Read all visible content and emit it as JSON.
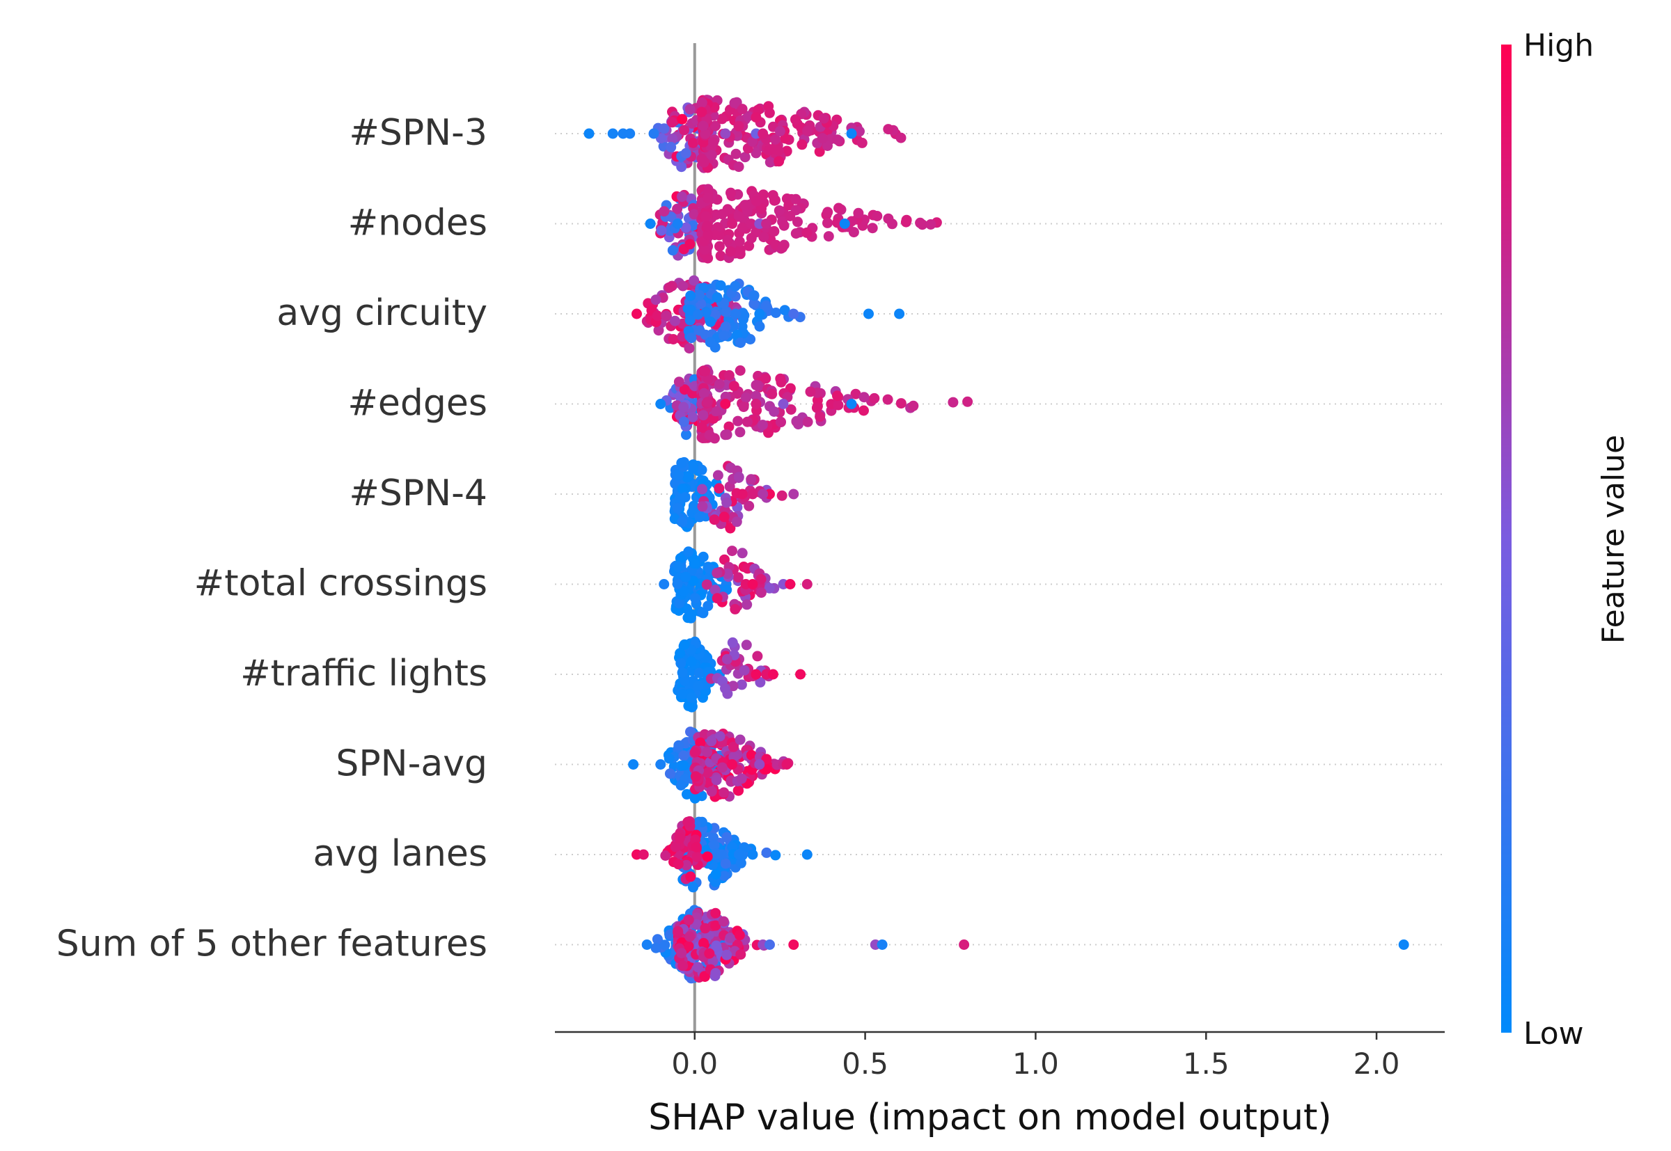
{
  "chart_data": {
    "type": "scatter",
    "subtype": "shap-beeswarm",
    "title": "",
    "xlabel": "SHAP value (impact on model output)",
    "ylabel": "",
    "xlim": [
      -0.41,
      2.2
    ],
    "xticks": [
      0.0,
      0.5,
      1.0,
      1.5,
      2.0
    ],
    "xtick_labels": [
      "0.0",
      "0.5",
      "1.0",
      "1.5",
      "2.0"
    ],
    "grid": false,
    "zero_line": 0.0,
    "features": [
      {
        "name": "#SPN-3",
        "core": [
          [
            -0.15,
            -0.03,
            0.1,
            0.24,
            0.2,
            1.0
          ],
          [
            0.02,
            0.07,
            0.55,
            0.85,
            0.75,
            0.9
          ]
        ],
        "outliers": [
          [
            -0.31,
            0.05
          ],
          [
            -0.24,
            0.08
          ],
          [
            -0.21,
            0.1
          ],
          [
            -0.19,
            0.1
          ],
          [
            -0.12,
            0.15
          ],
          [
            0.09,
            0.6
          ],
          [
            0.18,
            0.45
          ],
          [
            0.2,
            0.85
          ],
          [
            0.46,
            0.05
          ]
        ]
      },
      {
        "name": "#nodes",
        "core": [
          [
            -0.12,
            -0.04,
            0.08,
            0.22,
            0.15,
            1.0
          ],
          [
            0.02,
            0.07,
            0.6,
            0.95,
            0.8,
            0.85
          ]
        ],
        "outliers": [
          [
            -0.13,
            0.05
          ],
          [
            -0.05,
            0.1
          ],
          [
            0.11,
            0.85
          ],
          [
            0.19,
            0.55
          ],
          [
            0.21,
            0.8
          ],
          [
            0.44,
            0.05
          ]
        ]
      },
      {
        "name": "avg circuity",
        "core": [
          [
            -0.14,
            -0.02,
            0.16,
            0.36,
            0.65,
            0.95
          ],
          [
            -0.02,
            0.08,
            0.22,
            0.42,
            0.05,
            0.25
          ]
        ],
        "outliers": [
          [
            -0.17,
            0.95
          ],
          [
            0.12,
            0.15
          ],
          [
            0.19,
            0.05
          ],
          [
            0.29,
            0.3
          ],
          [
            0.51,
            0.05
          ],
          [
            0.6,
            0.05
          ]
        ]
      },
      {
        "name": "#edges",
        "core": [
          [
            -0.1,
            -0.02,
            0.06,
            0.2,
            0.1,
            1.0
          ],
          [
            0.02,
            0.06,
            0.55,
            0.85,
            0.7,
            0.9
          ]
        ],
        "outliers": [
          [
            -0.1,
            0.05
          ],
          [
            0.09,
            0.95
          ],
          [
            0.18,
            0.85
          ],
          [
            0.26,
            0.55
          ],
          [
            0.46,
            0.05
          ]
        ]
      },
      {
        "name": "#SPN-4",
        "core": [
          [
            -0.06,
            -0.015,
            0.11,
            0.36,
            0.0,
            0.12
          ],
          [
            0.02,
            0.1,
            0.12,
            0.18,
            0.5,
            0.95
          ]
        ],
        "outliers": [
          [
            0.14,
            0.9
          ],
          [
            0.17,
            0.85
          ],
          [
            0.22,
            0.95
          ],
          [
            0.2,
            0.7
          ],
          [
            0.29,
            0.7
          ]
        ]
      },
      {
        "name": "#total crossings",
        "core": [
          [
            -0.06,
            -0.01,
            0.12,
            0.38,
            0.0,
            0.1
          ],
          [
            0.02,
            0.12,
            0.1,
            0.16,
            0.55,
            0.95
          ]
        ],
        "outliers": [
          [
            -0.09,
            0.1
          ],
          [
            0.15,
            0.9
          ],
          [
            0.17,
            0.95
          ],
          [
            0.26,
            0.55
          ],
          [
            0.28,
            0.95
          ],
          [
            0.33,
            0.85
          ]
        ]
      },
      {
        "name": "#traffic lights",
        "core": [
          [
            -0.05,
            -0.01,
            0.08,
            0.4,
            0.0,
            0.08
          ],
          [
            0.01,
            0.13,
            0.1,
            0.12,
            0.55,
            0.95
          ]
        ],
        "outliers": [
          [
            0.18,
            0.95
          ],
          [
            0.21,
            0.9
          ],
          [
            0.23,
            0.95
          ],
          [
            0.31,
            0.95
          ]
        ]
      },
      {
        "name": "SPN-avg",
        "core": [
          [
            -0.08,
            0.0,
            0.1,
            0.36,
            0.0,
            0.3
          ],
          [
            0.0,
            0.07,
            0.18,
            0.55,
            0.6,
            1.0
          ]
        ],
        "outliers": [
          [
            -0.18,
            0.05
          ],
          [
            -0.1,
            0.1
          ],
          [
            0.11,
            0.95
          ],
          [
            0.19,
            0.6
          ],
          [
            0.26,
            0.8
          ],
          [
            0.27,
            0.9
          ]
        ]
      },
      {
        "name": "avg lanes",
        "core": [
          [
            -0.04,
            0.02,
            0.16,
            0.5,
            0.0,
            0.25
          ],
          [
            -0.12,
            -0.02,
            0.06,
            0.2,
            0.75,
            1.0
          ]
        ],
        "outliers": [
          [
            -0.17,
            0.95
          ],
          [
            -0.15,
            0.9
          ],
          [
            0.08,
            0.15
          ],
          [
            0.13,
            0.1
          ],
          [
            0.17,
            0.05
          ],
          [
            0.33,
            0.05
          ]
        ]
      },
      {
        "name": "Sum of 5 other features",
        "core": [
          [
            -0.12,
            0.0,
            0.12,
            0.5,
            0.0,
            0.3
          ],
          [
            -0.05,
            0.03,
            0.15,
            0.6,
            0.5,
            1.0
          ]
        ],
        "outliers": [
          [
            -0.14,
            0.1
          ],
          [
            0.2,
            0.6
          ],
          [
            0.22,
            0.3
          ],
          [
            0.29,
            0.95
          ],
          [
            0.53,
            0.6
          ],
          [
            0.55,
            0.1
          ],
          [
            0.79,
            0.85
          ],
          [
            2.08,
            0.05
          ]
        ]
      }
    ],
    "color_scale": {
      "low_color": "#008afb",
      "high_color": "#ff0052",
      "low_label": "Low",
      "high_label": "High",
      "label": "Feature value"
    },
    "line_colors": {
      "zero_line": "#999999",
      "dotted_rows": "#cccccc"
    }
  }
}
